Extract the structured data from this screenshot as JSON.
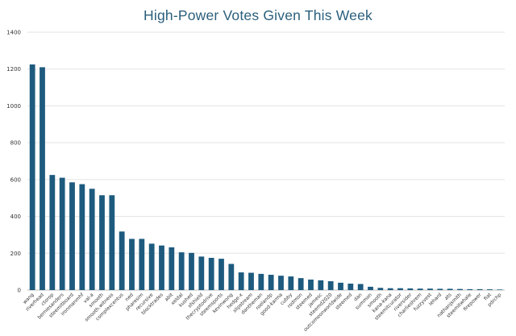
{
  "chart_data": {
    "type": "bar",
    "title": "High-Power Votes Given This Week",
    "xlabel": "",
    "ylabel": "",
    "ylim": [
      0,
      1400
    ],
    "yticks": [
      0,
      200,
      400,
      600,
      800,
      1000,
      1200,
      1400
    ],
    "grid": true,
    "legend": "none",
    "bar_color": "#1d5a7e",
    "categories": [
      "wang",
      "riverhead",
      "ctorop",
      "berniesanders",
      "steemitboard",
      "ironmanmhf",
      "val-a",
      "smooth",
      "smooth.witness",
      "complexcentus",
      "ned",
      "pharesim",
      "recursive",
      "blocktrades",
      "abit",
      "xeldal",
      "kushed",
      "sfshield",
      "thecryptodrive",
      "steemsports",
      "kevinwong",
      "hedge-x",
      "slipstream",
      "dantheman",
      "roelandp",
      "good-karma",
      "cubby",
      "rodmon",
      "steemed",
      "jamesc",
      "steemd2020",
      "outcomeonworldwide",
      "steemed",
      "dan",
      "summon",
      "smooth",
      "kana-kana",
      "steemitcurator",
      "riversider",
      "charlieshrem",
      "fuzzyvest",
      "lehard",
      "ats",
      "nathanjsmith",
      "steemitwhale",
      "firepower",
      "fiat",
      "pdrchp"
    ],
    "values": [
      1225,
      1210,
      625,
      610,
      585,
      575,
      550,
      515,
      515,
      318,
      278,
      278,
      252,
      242,
      232,
      205,
      202,
      182,
      175,
      170,
      142,
      96,
      94,
      88,
      83,
      78,
      74,
      65,
      57,
      53,
      48,
      40,
      35,
      33,
      18,
      12,
      10,
      10,
      9,
      8,
      8,
      7,
      7,
      6,
      5,
      5,
      4,
      3
    ]
  }
}
